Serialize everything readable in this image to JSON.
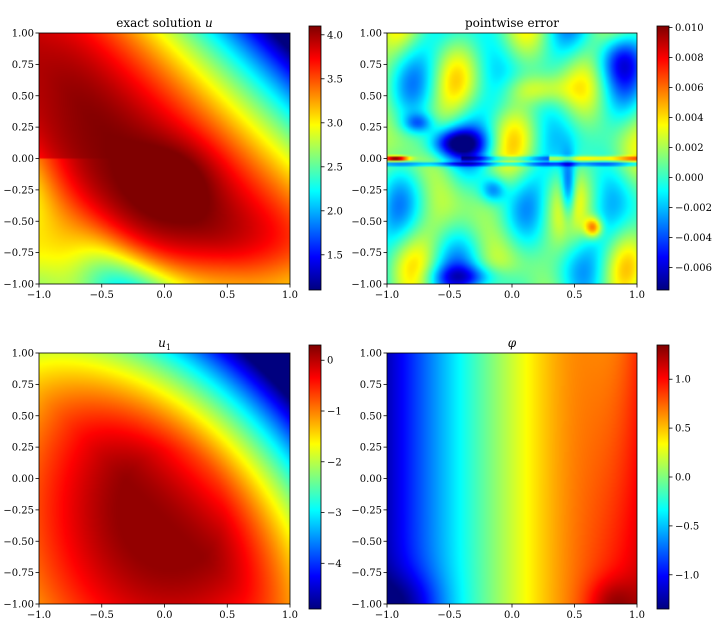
{
  "figure": {
    "layout": "2x2 grid of heatmaps with colorbars",
    "colormap": "jet",
    "colormap_stops": [
      "#00007f",
      "#0000ff",
      "#007fff",
      "#00ffff",
      "#7fff7f",
      "#ffff00",
      "#ff7f00",
      "#ff0000",
      "#7f0000"
    ]
  },
  "chart_data": [
    {
      "type": "heatmap",
      "title": "exact solution u",
      "title_parts": [
        "exact solution ",
        "u"
      ],
      "xlabel": "",
      "ylabel": "",
      "xlim": [
        -1,
        1
      ],
      "ylim": [
        -1,
        1
      ],
      "xticks": [
        "−1.0",
        "−0.5",
        "0.0",
        "0.5",
        "1.0"
      ],
      "xtick_values": [
        -1,
        -0.5,
        0,
        0.5,
        1
      ],
      "yticks": [
        "1.00",
        "0.75",
        "0.50",
        "0.25",
        "0.00",
        "−0.25",
        "−0.50",
        "−0.75",
        "−1.00"
      ],
      "ytick_values": [
        1,
        0.75,
        0.5,
        0.25,
        0,
        -0.25,
        -0.5,
        -0.75,
        -1
      ],
      "colorbar": {
        "min": 1.1,
        "max": 4.1,
        "ticks": [
          "1.5",
          "2.0",
          "2.5",
          "3.0",
          "3.5",
          "4.0"
        ],
        "tick_values": [
          1.5,
          2.0,
          2.5,
          3.0,
          3.5,
          4.0
        ]
      },
      "field": "exact",
      "description_values": {
        "max_region": [
          -0.5,
          0.5
        ],
        "min_region": [
          1,
          1
        ]
      }
    },
    {
      "type": "heatmap",
      "title": "pointwise error",
      "title_parts": [
        "pointwise error",
        ""
      ],
      "xlabel": "",
      "ylabel": "",
      "xlim": [
        -1,
        1
      ],
      "ylim": [
        -1,
        1
      ],
      "xticks": [
        "−1.0",
        "−0.5",
        "0.0",
        "0.5",
        "1.0"
      ],
      "xtick_values": [
        -1,
        -0.5,
        0,
        0.5,
        1
      ],
      "yticks": [
        "1.00",
        "0.75",
        "0.50",
        "0.25",
        "0.00",
        "−0.25",
        "−0.50",
        "−0.75",
        "−1.00"
      ],
      "ytick_values": [
        1,
        0.75,
        0.5,
        0.25,
        0,
        -0.25,
        -0.5,
        -0.75,
        -1
      ],
      "colorbar": {
        "min": -0.0075,
        "max": 0.0101,
        "ticks": [
          "−0.006",
          "−0.004",
          "−0.002",
          "0.000",
          "0.002",
          "0.004",
          "0.006",
          "0.008",
          "0.010"
        ],
        "tick_values": [
          -0.006,
          -0.004,
          -0.002,
          0.0,
          0.002,
          0.004,
          0.006,
          0.008,
          0.01
        ]
      },
      "field": "error",
      "description_values": {
        "peak_error": 0.0101,
        "peak_location": [
          -0.95,
          0.0
        ]
      }
    },
    {
      "type": "heatmap",
      "title": "u1",
      "title_parts": [
        "u",
        "1"
      ],
      "xlabel": "",
      "ylabel": "",
      "xlim": [
        -1,
        1
      ],
      "ylim": [
        -1,
        1
      ],
      "xticks": [
        "−1.0",
        "−0.5",
        "0.0",
        "0.5",
        "1.0"
      ],
      "xtick_values": [
        -1,
        -0.5,
        0,
        0.5,
        1
      ],
      "yticks": [
        "1.00",
        "0.75",
        "0.50",
        "0.25",
        "0.00",
        "−0.25",
        "−0.50",
        "−0.75",
        "−1.00"
      ],
      "ytick_values": [
        1,
        0.75,
        0.5,
        0.25,
        0,
        -0.25,
        -0.5,
        -0.75,
        -1
      ],
      "colorbar": {
        "min": -4.9,
        "max": 0.3,
        "ticks": [
          "−4",
          "−3",
          "−2",
          "−1",
          "0"
        ],
        "tick_values": [
          -4,
          -3,
          -2,
          -1,
          0
        ]
      },
      "field": "u1",
      "description_values": {
        "max_region": [
          0.0,
          -0.2
        ],
        "min_region": [
          1,
          1
        ]
      }
    },
    {
      "type": "heatmap",
      "title": "φ",
      "title_parts": [
        "φ",
        ""
      ],
      "xlabel": "",
      "ylabel": "",
      "xlim": [
        -1,
        1
      ],
      "ylim": [
        -1,
        1
      ],
      "xticks": [
        "−1.0",
        "−0.5",
        "0.0",
        "0.5",
        "1.0"
      ],
      "xtick_values": [
        -1,
        -0.5,
        0,
        0.5,
        1
      ],
      "yticks": [
        "1.00",
        "0.75",
        "0.50",
        "0.25",
        "0.00",
        "−0.25",
        "−0.50",
        "−0.75",
        "−1.00"
      ],
      "ytick_values": [
        1,
        0.75,
        0.5,
        0.25,
        0,
        -0.25,
        -0.5,
        -0.75,
        -1
      ],
      "colorbar": {
        "min": -1.35,
        "max": 1.35,
        "ticks": [
          "−1.0",
          "−0.5",
          "0.0",
          "0.5",
          "1.0"
        ],
        "tick_values": [
          -1.0,
          -0.5,
          0.0,
          0.5,
          1.0
        ]
      },
      "field": "phi",
      "description_values": {
        "max_location": [
          0.8,
          -1.0
        ],
        "min_location": [
          -1.0,
          -1.0
        ]
      }
    }
  ]
}
